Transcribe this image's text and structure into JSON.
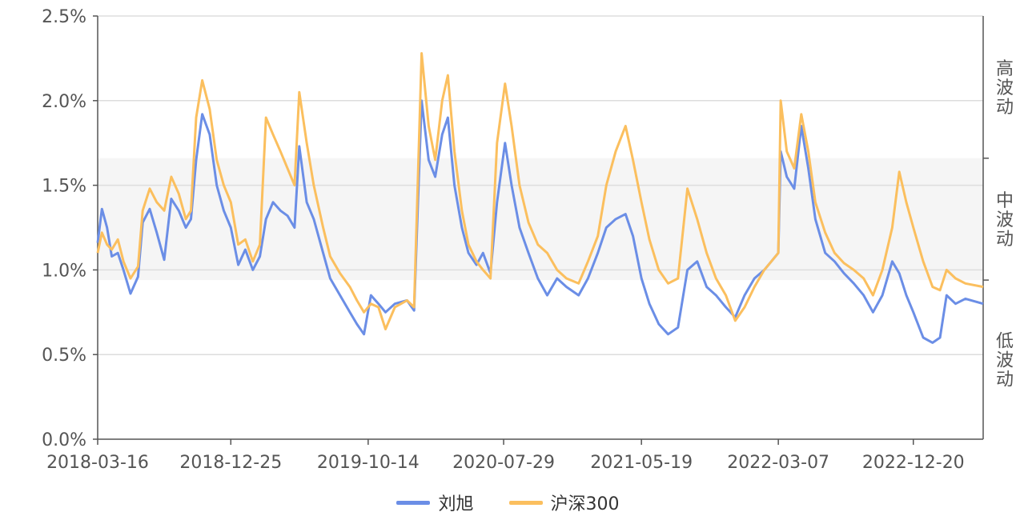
{
  "chart_data": {
    "type": "line",
    "title": "",
    "xlabel": "",
    "ylabel": "",
    "x_range": [
      "2018-03-16",
      "2023-05-18"
    ],
    "ylim": [
      0,
      0.025
    ],
    "y_ticks": [
      "0.0%",
      "0.5%",
      "1.0%",
      "1.5%",
      "2.0%",
      "2.5%"
    ],
    "y_tick_values": [
      0,
      0.005,
      0.01,
      0.015,
      0.02,
      0.025
    ],
    "x_ticks": [
      "2018-03-16",
      "2018-12-25",
      "2019-10-14",
      "2020-07-29",
      "2021-05-19",
      "2022-03-07",
      "2022-12-20"
    ],
    "grid": true,
    "legend_position": "bottom",
    "bands": [
      {
        "label": "低波动",
        "from": 0,
        "to": 0.0094,
        "shaded": false
      },
      {
        "label": "中波动",
        "from": 0.0094,
        "to": 0.0166,
        "shaded": true,
        "color": "#f5f5f5"
      },
      {
        "label": "高波动",
        "from": 0.0166,
        "to": 0.025,
        "shaded": false
      }
    ],
    "series": [
      {
        "name": "刘旭",
        "color": "#6b8ee6",
        "points": [
          [
            "2018-03-16",
            0.0116
          ],
          [
            "2018-03-25",
            0.0136
          ],
          [
            "2018-04-05",
            0.0125
          ],
          [
            "2018-04-15",
            0.0108
          ],
          [
            "2018-04-28",
            0.011
          ],
          [
            "2018-05-10",
            0.01
          ],
          [
            "2018-05-25",
            0.0086
          ],
          [
            "2018-06-10",
            0.0096
          ],
          [
            "2018-06-20",
            0.0128
          ],
          [
            "2018-07-05",
            0.0136
          ],
          [
            "2018-07-20",
            0.0122
          ],
          [
            "2018-08-05",
            0.0106
          ],
          [
            "2018-08-20",
            0.0142
          ],
          [
            "2018-09-05",
            0.0135
          ],
          [
            "2018-09-20",
            0.0125
          ],
          [
            "2018-10-01",
            0.013
          ],
          [
            "2018-10-12",
            0.0165
          ],
          [
            "2018-10-25",
            0.0192
          ],
          [
            "2018-11-10",
            0.018
          ],
          [
            "2018-11-25",
            0.015
          ],
          [
            "2018-12-10",
            0.0135
          ],
          [
            "2018-12-25",
            0.0125
          ],
          [
            "2019-01-10",
            0.0103
          ],
          [
            "2019-01-25",
            0.0112
          ],
          [
            "2019-02-10",
            0.01
          ],
          [
            "2019-02-25",
            0.0108
          ],
          [
            "2019-03-10",
            0.013
          ],
          [
            "2019-03-25",
            0.014
          ],
          [
            "2019-04-10",
            0.0135
          ],
          [
            "2019-04-25",
            0.0132
          ],
          [
            "2019-05-10",
            0.0125
          ],
          [
            "2019-05-20",
            0.0173
          ],
          [
            "2019-06-05",
            0.014
          ],
          [
            "2019-06-20",
            0.013
          ],
          [
            "2019-07-10",
            0.011
          ],
          [
            "2019-07-25",
            0.0095
          ],
          [
            "2019-08-15",
            0.0085
          ],
          [
            "2019-09-05",
            0.0075
          ],
          [
            "2019-09-20",
            0.0068
          ],
          [
            "2019-10-05",
            0.0062
          ],
          [
            "2019-10-20",
            0.0085
          ],
          [
            "2019-11-05",
            0.008
          ],
          [
            "2019-11-20",
            0.0075
          ],
          [
            "2019-12-10",
            0.008
          ],
          [
            "2020-01-05",
            0.0082
          ],
          [
            "2020-01-20",
            0.0076
          ],
          [
            "2020-02-05",
            0.02
          ],
          [
            "2020-02-20",
            0.0165
          ],
          [
            "2020-03-05",
            0.0155
          ],
          [
            "2020-03-20",
            0.018
          ],
          [
            "2020-04-01",
            0.019
          ],
          [
            "2020-04-15",
            0.015
          ],
          [
            "2020-05-01",
            0.0125
          ],
          [
            "2020-05-15",
            0.011
          ],
          [
            "2020-06-01",
            0.0103
          ],
          [
            "2020-06-15",
            0.011
          ],
          [
            "2020-07-01",
            0.0098
          ],
          [
            "2020-07-15",
            0.014
          ],
          [
            "2020-08-01",
            0.0175
          ],
          [
            "2020-08-15",
            0.015
          ],
          [
            "2020-09-01",
            0.0125
          ],
          [
            "2020-09-20",
            0.011
          ],
          [
            "2020-10-10",
            0.0095
          ],
          [
            "2020-10-30",
            0.0085
          ],
          [
            "2020-11-20",
            0.0095
          ],
          [
            "2020-12-10",
            0.009
          ],
          [
            "2021-01-05",
            0.0085
          ],
          [
            "2021-01-25",
            0.0095
          ],
          [
            "2021-02-15",
            0.011
          ],
          [
            "2021-03-05",
            0.0125
          ],
          [
            "2021-03-25",
            0.013
          ],
          [
            "2021-04-15",
            0.0133
          ],
          [
            "2021-05-01",
            0.012
          ],
          [
            "2021-05-19",
            0.0095
          ],
          [
            "2021-06-05",
            0.008
          ],
          [
            "2021-06-25",
            0.0068
          ],
          [
            "2021-07-15",
            0.0062
          ],
          [
            "2021-08-05",
            0.0066
          ],
          [
            "2021-08-25",
            0.01
          ],
          [
            "2021-09-15",
            0.0105
          ],
          [
            "2021-10-05",
            0.009
          ],
          [
            "2021-10-25",
            0.0085
          ],
          [
            "2021-11-15",
            0.0078
          ],
          [
            "2021-12-05",
            0.0072
          ],
          [
            "2021-12-25",
            0.0085
          ],
          [
            "2022-01-15",
            0.0095
          ],
          [
            "2022-02-05",
            0.01
          ],
          [
            "2022-02-20",
            0.0105
          ],
          [
            "2022-03-07",
            0.011
          ],
          [
            "2022-03-12",
            0.017
          ],
          [
            "2022-03-25",
            0.0155
          ],
          [
            "2022-04-10",
            0.0148
          ],
          [
            "2022-04-25",
            0.0185
          ],
          [
            "2022-05-10",
            0.016
          ],
          [
            "2022-05-25",
            0.013
          ],
          [
            "2022-06-15",
            0.011
          ],
          [
            "2022-07-05",
            0.0105
          ],
          [
            "2022-07-25",
            0.0098
          ],
          [
            "2022-08-15",
            0.0092
          ],
          [
            "2022-09-05",
            0.0085
          ],
          [
            "2022-09-25",
            0.0075
          ],
          [
            "2022-10-15",
            0.0085
          ],
          [
            "2022-11-05",
            0.0105
          ],
          [
            "2022-11-20",
            0.0098
          ],
          [
            "2022-12-05",
            0.0085
          ],
          [
            "2022-12-20",
            0.0075
          ],
          [
            "2023-01-10",
            0.006
          ],
          [
            "2023-01-30",
            0.0057
          ],
          [
            "2023-02-15",
            0.006
          ],
          [
            "2023-03-01",
            0.0085
          ],
          [
            "2023-03-20",
            0.008
          ],
          [
            "2023-04-10",
            0.0083
          ],
          [
            "2023-05-18",
            0.008
          ]
        ]
      },
      {
        "name": "沪深300",
        "color": "#fbbf5e",
        "points": [
          [
            "2018-03-16",
            0.011
          ],
          [
            "2018-03-25",
            0.0122
          ],
          [
            "2018-04-05",
            0.0115
          ],
          [
            "2018-04-15",
            0.0112
          ],
          [
            "2018-04-28",
            0.0118
          ],
          [
            "2018-05-10",
            0.0105
          ],
          [
            "2018-05-25",
            0.0095
          ],
          [
            "2018-06-10",
            0.0102
          ],
          [
            "2018-06-20",
            0.0135
          ],
          [
            "2018-07-05",
            0.0148
          ],
          [
            "2018-07-20",
            0.014
          ],
          [
            "2018-08-05",
            0.0135
          ],
          [
            "2018-08-20",
            0.0155
          ],
          [
            "2018-09-05",
            0.0145
          ],
          [
            "2018-09-20",
            0.013
          ],
          [
            "2018-10-01",
            0.0135
          ],
          [
            "2018-10-12",
            0.019
          ],
          [
            "2018-10-25",
            0.0212
          ],
          [
            "2018-11-10",
            0.0195
          ],
          [
            "2018-11-25",
            0.0165
          ],
          [
            "2018-12-10",
            0.015
          ],
          [
            "2018-12-25",
            0.014
          ],
          [
            "2019-01-10",
            0.0115
          ],
          [
            "2019-01-25",
            0.0118
          ],
          [
            "2019-02-10",
            0.0105
          ],
          [
            "2019-02-25",
            0.0115
          ],
          [
            "2019-03-10",
            0.019
          ],
          [
            "2019-03-25",
            0.018
          ],
          [
            "2019-04-10",
            0.017
          ],
          [
            "2019-04-25",
            0.016
          ],
          [
            "2019-05-10",
            0.015
          ],
          [
            "2019-05-20",
            0.0205
          ],
          [
            "2019-06-05",
            0.0175
          ],
          [
            "2019-06-20",
            0.015
          ],
          [
            "2019-07-10",
            0.0125
          ],
          [
            "2019-07-25",
            0.0108
          ],
          [
            "2019-08-15",
            0.0098
          ],
          [
            "2019-09-05",
            0.009
          ],
          [
            "2019-09-20",
            0.0082
          ],
          [
            "2019-10-05",
            0.0075
          ],
          [
            "2019-10-20",
            0.008
          ],
          [
            "2019-11-05",
            0.0078
          ],
          [
            "2019-11-20",
            0.0065
          ],
          [
            "2019-12-10",
            0.0078
          ],
          [
            "2020-01-05",
            0.0082
          ],
          [
            "2020-01-20",
            0.0078
          ],
          [
            "2020-02-05",
            0.0228
          ],
          [
            "2020-02-20",
            0.0185
          ],
          [
            "2020-03-05",
            0.0165
          ],
          [
            "2020-03-20",
            0.02
          ],
          [
            "2020-04-01",
            0.0215
          ],
          [
            "2020-04-15",
            0.017
          ],
          [
            "2020-05-01",
            0.0135
          ],
          [
            "2020-05-15",
            0.0115
          ],
          [
            "2020-06-01",
            0.0105
          ],
          [
            "2020-06-15",
            0.01
          ],
          [
            "2020-07-01",
            0.0095
          ],
          [
            "2020-07-15",
            0.0175
          ],
          [
            "2020-08-01",
            0.021
          ],
          [
            "2020-08-15",
            0.0185
          ],
          [
            "2020-09-01",
            0.015
          ],
          [
            "2020-09-20",
            0.0128
          ],
          [
            "2020-10-10",
            0.0115
          ],
          [
            "2020-10-30",
            0.011
          ],
          [
            "2020-11-20",
            0.01
          ],
          [
            "2020-12-10",
            0.0095
          ],
          [
            "2021-01-05",
            0.0092
          ],
          [
            "2021-01-25",
            0.0105
          ],
          [
            "2021-02-15",
            0.012
          ],
          [
            "2021-03-05",
            0.015
          ],
          [
            "2021-03-25",
            0.017
          ],
          [
            "2021-04-15",
            0.0185
          ],
          [
            "2021-05-01",
            0.0165
          ],
          [
            "2021-05-19",
            0.014
          ],
          [
            "2021-06-05",
            0.0118
          ],
          [
            "2021-06-25",
            0.01
          ],
          [
            "2021-07-15",
            0.0092
          ],
          [
            "2021-08-05",
            0.0095
          ],
          [
            "2021-08-25",
            0.0148
          ],
          [
            "2021-09-15",
            0.013
          ],
          [
            "2021-10-05",
            0.011
          ],
          [
            "2021-10-25",
            0.0095
          ],
          [
            "2021-11-15",
            0.0085
          ],
          [
            "2021-12-05",
            0.007
          ],
          [
            "2021-12-25",
            0.0078
          ],
          [
            "2022-01-15",
            0.009
          ],
          [
            "2022-02-05",
            0.01
          ],
          [
            "2022-02-20",
            0.0105
          ],
          [
            "2022-03-07",
            0.011
          ],
          [
            "2022-03-12",
            0.02
          ],
          [
            "2022-03-25",
            0.017
          ],
          [
            "2022-04-10",
            0.016
          ],
          [
            "2022-04-25",
            0.0192
          ],
          [
            "2022-05-10",
            0.017
          ],
          [
            "2022-05-25",
            0.014
          ],
          [
            "2022-06-15",
            0.0122
          ],
          [
            "2022-07-05",
            0.011
          ],
          [
            "2022-07-25",
            0.0104
          ],
          [
            "2022-08-15",
            0.01
          ],
          [
            "2022-09-05",
            0.0095
          ],
          [
            "2022-09-25",
            0.0085
          ],
          [
            "2022-10-15",
            0.01
          ],
          [
            "2022-11-05",
            0.0125
          ],
          [
            "2022-11-20",
            0.0158
          ],
          [
            "2022-12-05",
            0.014
          ],
          [
            "2022-12-20",
            0.0125
          ],
          [
            "2023-01-10",
            0.0105
          ],
          [
            "2023-01-30",
            0.009
          ],
          [
            "2023-02-15",
            0.0088
          ],
          [
            "2023-03-01",
            0.01
          ],
          [
            "2023-03-20",
            0.0095
          ],
          [
            "2023-04-10",
            0.0092
          ],
          [
            "2023-05-18",
            0.009
          ]
        ]
      }
    ]
  }
}
